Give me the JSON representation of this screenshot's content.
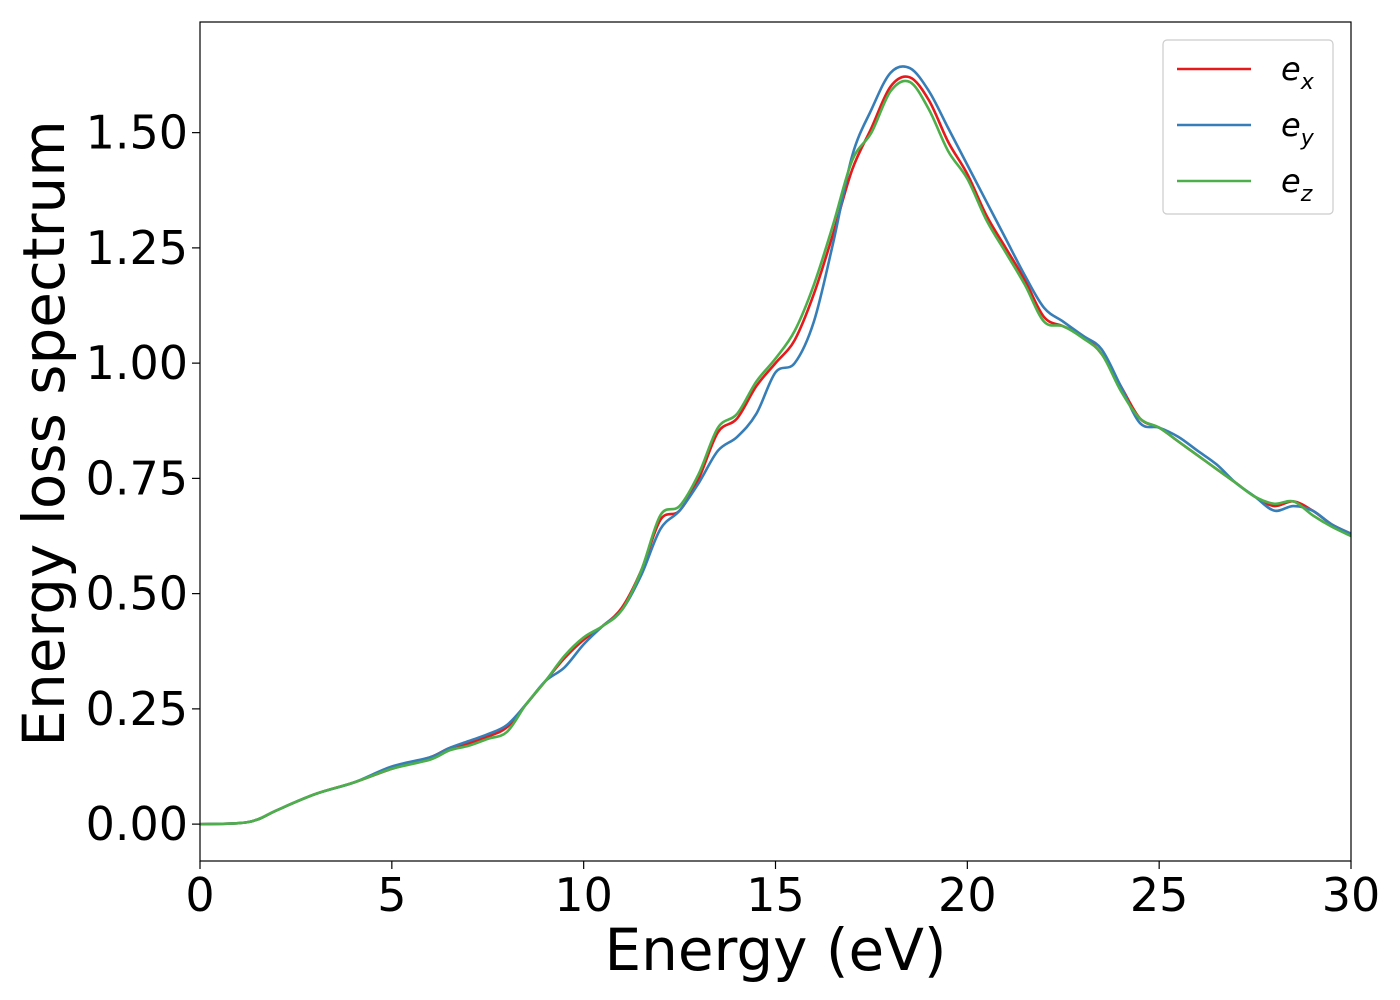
{
  "chart_data": {
    "type": "line",
    "title": "",
    "xlabel": "Energy (eV)",
    "ylabel": "Energy loss spectrum",
    "xlim": [
      0,
      30
    ],
    "ylim": [
      -0.08,
      1.74
    ],
    "xticks": [
      0,
      5,
      10,
      15,
      20,
      25,
      30
    ],
    "xtick_labels": [
      "0",
      "5",
      "10",
      "15",
      "20",
      "25",
      "30"
    ],
    "yticks": [
      0.0,
      0.25,
      0.5,
      0.75,
      1.0,
      1.25,
      1.5
    ],
    "ytick_labels": [
      "0.00",
      "0.25",
      "0.50",
      "0.75",
      "1.00",
      "1.25",
      "1.50"
    ],
    "grid": false,
    "legend": {
      "location": "upper right"
    },
    "series": [
      {
        "name": "e_x",
        "label_base": "e",
        "label_sub": "x",
        "color": "#e41a1c",
        "x": [
          0,
          1,
          1.5,
          2,
          3,
          4,
          5,
          6,
          6.5,
          7,
          7.5,
          8,
          8.5,
          9,
          9.5,
          10,
          10.5,
          11,
          11.5,
          12,
          12.5,
          13,
          13.5,
          14,
          14.5,
          15,
          15.5,
          16,
          16.5,
          17,
          17.5,
          18,
          18.5,
          19,
          19.5,
          20,
          20.5,
          21,
          21.5,
          22,
          22.5,
          23,
          23.5,
          24,
          24.5,
          25,
          25.5,
          26,
          26.5,
          27,
          27.5,
          28,
          28.5,
          29,
          29.5,
          30
        ],
        "y": [
          0.0,
          0.002,
          0.01,
          0.03,
          0.065,
          0.09,
          0.12,
          0.145,
          0.165,
          0.175,
          0.19,
          0.21,
          0.26,
          0.31,
          0.36,
          0.4,
          0.43,
          0.47,
          0.55,
          0.66,
          0.68,
          0.75,
          0.85,
          0.88,
          0.95,
          1.0,
          1.05,
          1.15,
          1.28,
          1.42,
          1.51,
          1.6,
          1.62,
          1.57,
          1.48,
          1.41,
          1.32,
          1.25,
          1.18,
          1.1,
          1.08,
          1.06,
          1.02,
          0.95,
          0.88,
          0.86,
          0.83,
          0.8,
          0.77,
          0.74,
          0.71,
          0.69,
          0.7,
          0.68,
          0.65,
          0.63
        ]
      },
      {
        "name": "e_y",
        "label_base": "e",
        "label_sub": "y",
        "color": "#377eb8",
        "x": [
          0,
          1,
          1.5,
          2,
          3,
          4,
          5,
          6,
          6.5,
          7,
          7.5,
          8,
          8.5,
          9,
          9.5,
          10,
          10.5,
          11,
          11.5,
          12,
          12.5,
          13,
          13.5,
          14,
          14.5,
          15,
          15.5,
          16,
          16.5,
          17,
          17.5,
          18,
          18.5,
          19,
          19.5,
          20,
          20.5,
          21,
          21.5,
          22,
          22.5,
          23,
          23.5,
          24,
          24.5,
          25,
          25.5,
          26,
          26.5,
          27,
          27.5,
          28,
          28.5,
          29,
          29.5,
          30
        ],
        "y": [
          0.0,
          0.002,
          0.01,
          0.03,
          0.065,
          0.09,
          0.125,
          0.145,
          0.165,
          0.18,
          0.195,
          0.215,
          0.26,
          0.31,
          0.34,
          0.39,
          0.43,
          0.465,
          0.54,
          0.64,
          0.68,
          0.74,
          0.81,
          0.84,
          0.89,
          0.98,
          1.0,
          1.09,
          1.26,
          1.45,
          1.55,
          1.63,
          1.64,
          1.59,
          1.51,
          1.43,
          1.35,
          1.27,
          1.19,
          1.12,
          1.09,
          1.06,
          1.03,
          0.95,
          0.87,
          0.86,
          0.84,
          0.81,
          0.78,
          0.74,
          0.71,
          0.68,
          0.69,
          0.68,
          0.65,
          0.63
        ]
      },
      {
        "name": "e_z",
        "label_base": "e",
        "label_sub": "z",
        "color": "#4daf4a",
        "x": [
          0,
          1,
          1.5,
          2,
          3,
          4,
          5,
          6,
          6.5,
          7,
          7.5,
          8,
          8.5,
          9,
          9.5,
          10,
          10.5,
          11,
          11.5,
          12,
          12.5,
          13,
          13.5,
          14,
          14.5,
          15,
          15.5,
          16,
          16.5,
          17,
          17.5,
          18,
          18.5,
          19,
          19.5,
          20,
          20.5,
          21,
          21.5,
          22,
          22.5,
          23,
          23.5,
          24,
          24.5,
          25,
          25.5,
          26,
          26.5,
          27,
          27.5,
          28,
          28.5,
          29,
          29.5,
          30
        ],
        "y": [
          0.0,
          0.002,
          0.01,
          0.03,
          0.065,
          0.09,
          0.12,
          0.14,
          0.16,
          0.17,
          0.185,
          0.2,
          0.26,
          0.31,
          0.365,
          0.405,
          0.43,
          0.465,
          0.55,
          0.67,
          0.69,
          0.76,
          0.86,
          0.89,
          0.96,
          1.01,
          1.07,
          1.17,
          1.3,
          1.44,
          1.5,
          1.59,
          1.61,
          1.55,
          1.46,
          1.4,
          1.31,
          1.24,
          1.17,
          1.09,
          1.08,
          1.055,
          1.02,
          0.94,
          0.88,
          0.86,
          0.83,
          0.8,
          0.77,
          0.74,
          0.71,
          0.695,
          0.7,
          0.67,
          0.645,
          0.625
        ]
      }
    ]
  }
}
